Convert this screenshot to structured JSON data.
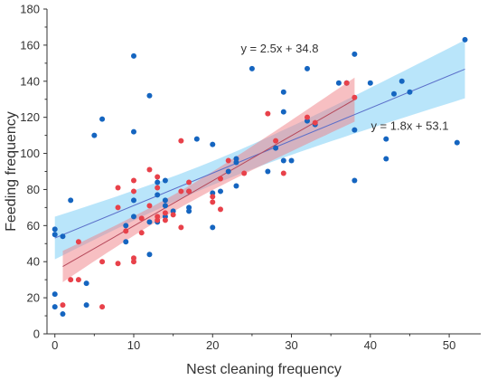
{
  "chart_data": {
    "type": "scatter",
    "xlabel": "Nest cleaning frequency",
    "ylabel": "Feeding frequency",
    "xlim": [
      -1,
      54
    ],
    "ylim": [
      0,
      180
    ],
    "xticks": [
      0,
      10,
      20,
      30,
      40,
      50
    ],
    "yticks": [
      0,
      20,
      40,
      60,
      80,
      100,
      120,
      140,
      160,
      180
    ],
    "grid": false,
    "series": [
      {
        "color": "#1565c0",
        "band_color": "#7fd0f5",
        "line_color": "#5b6fc9",
        "fit": {
          "slope": 1.8,
          "intercept": 53.1,
          "x_range": [
            0,
            52
          ]
        },
        "points": [
          [
            0,
            22
          ],
          [
            0,
            15
          ],
          [
            0,
            55
          ],
          [
            0,
            58
          ],
          [
            1,
            54
          ],
          [
            1,
            11
          ],
          [
            2,
            74
          ],
          [
            4,
            28
          ],
          [
            4,
            16
          ],
          [
            5,
            110
          ],
          [
            6,
            119
          ],
          [
            9,
            60
          ],
          [
            9,
            51
          ],
          [
            10,
            154
          ],
          [
            10,
            112
          ],
          [
            10,
            65
          ],
          [
            10,
            74
          ],
          [
            12,
            132
          ],
          [
            12,
            44
          ],
          [
            12,
            62
          ],
          [
            13,
            62
          ],
          [
            13,
            77
          ],
          [
            13,
            84
          ],
          [
            14,
            85
          ],
          [
            14,
            74
          ],
          [
            14,
            71
          ],
          [
            14,
            65
          ],
          [
            15,
            68
          ],
          [
            17,
            70
          ],
          [
            17,
            68
          ],
          [
            17,
            79
          ],
          [
            18,
            108
          ],
          [
            20,
            105
          ],
          [
            20,
            59
          ],
          [
            20,
            78
          ],
          [
            21,
            79
          ],
          [
            22,
            90
          ],
          [
            23,
            97
          ],
          [
            23,
            95
          ],
          [
            23,
            82
          ],
          [
            25,
            147
          ],
          [
            27,
            90
          ],
          [
            28,
            103
          ],
          [
            29,
            134
          ],
          [
            29,
            123
          ],
          [
            29,
            96
          ],
          [
            30,
            96
          ],
          [
            32,
            147
          ],
          [
            32,
            118
          ],
          [
            33,
            116
          ],
          [
            36,
            139
          ],
          [
            37,
            139
          ],
          [
            38,
            155
          ],
          [
            38,
            113
          ],
          [
            38,
            85
          ],
          [
            40,
            139
          ],
          [
            42,
            108
          ],
          [
            42,
            97
          ],
          [
            43,
            133
          ],
          [
            44,
            140
          ],
          [
            45,
            134
          ],
          [
            51,
            106
          ],
          [
            52,
            163
          ]
        ]
      },
      {
        "color": "#e8414a",
        "band_color": "#f07f86",
        "line_color": "#b5485a",
        "fit": {
          "slope": 2.5,
          "intercept": 34.8,
          "x_range": [
            1,
            38
          ]
        },
        "points": [
          [
            1,
            16
          ],
          [
            2,
            30
          ],
          [
            3,
            51
          ],
          [
            3,
            30
          ],
          [
            6,
            40
          ],
          [
            6,
            15
          ],
          [
            8,
            81
          ],
          [
            8,
            70
          ],
          [
            8,
            39
          ],
          [
            9,
            57
          ],
          [
            10,
            85
          ],
          [
            10,
            79
          ],
          [
            10,
            42
          ],
          [
            10,
            40
          ],
          [
            11,
            64
          ],
          [
            11,
            56
          ],
          [
            12,
            91
          ],
          [
            12,
            71
          ],
          [
            13,
            87
          ],
          [
            13,
            81
          ],
          [
            13,
            65
          ],
          [
            13,
            63
          ],
          [
            14,
            67
          ],
          [
            14,
            63
          ],
          [
            15,
            66
          ],
          [
            16,
            107
          ],
          [
            16,
            79
          ],
          [
            16,
            59
          ],
          [
            17,
            84
          ],
          [
            17,
            79
          ],
          [
            20,
            76
          ],
          [
            20,
            73
          ],
          [
            21,
            86
          ],
          [
            21,
            69
          ],
          [
            22,
            96
          ],
          [
            24,
            89
          ],
          [
            27,
            122
          ],
          [
            28,
            107
          ],
          [
            29,
            89
          ],
          [
            32,
            120
          ],
          [
            33,
            117
          ],
          [
            37,
            139
          ],
          [
            38,
            131
          ]
        ]
      }
    ],
    "annotations": [
      {
        "text": "y = 2.5x + 34.8",
        "x": 28.5,
        "y": 156
      },
      {
        "text": "y = 1.8x + 53.1",
        "x": 45,
        "y": 113
      }
    ]
  }
}
